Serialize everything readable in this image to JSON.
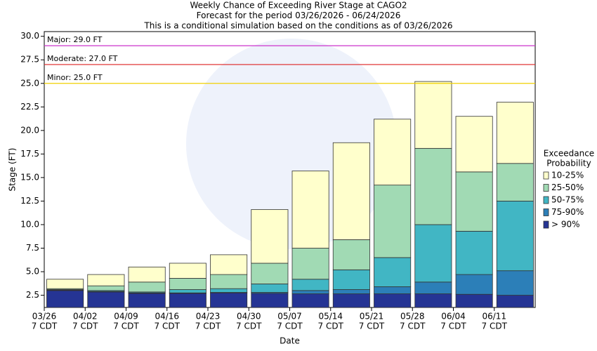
{
  "chart_data": {
    "type": "stacked_bar",
    "title": [
      "Weekly Chance of Exceeding River Stage at CAGO2",
      "Forecast for the period 03/26/2026 - 06/24/2026",
      "This is a conditional simulation based on the conditions as of 03/26/2026"
    ],
    "x_label": "Date",
    "y_label": "Stage (FT)",
    "categories": [
      [
        "03/26",
        "7 CDT"
      ],
      [
        "04/02",
        "7 CDT"
      ],
      [
        "04/09",
        "7 CDT"
      ],
      [
        "04/16",
        "7 CDT"
      ],
      [
        "04/23",
        "7 CDT"
      ],
      [
        "04/30",
        "7 CDT"
      ],
      [
        "05/07",
        "7 CDT"
      ],
      [
        "05/14",
        "7 CDT"
      ],
      [
        "05/21",
        "7 CDT"
      ],
      [
        "05/28",
        "7 CDT"
      ],
      [
        "06/04",
        "7 CDT"
      ],
      [
        "06/11",
        "7 CDT"
      ]
    ],
    "series": [
      {
        "name": "> 90%",
        "color": "#253494",
        "values": [
          3.0,
          2.85,
          2.7,
          2.7,
          2.75,
          2.7,
          2.65,
          2.65,
          2.65,
          2.65,
          2.6,
          2.5
        ]
      },
      {
        "name": "75-90%",
        "color": "#2c7fb8",
        "values": [
          0.05,
          0.05,
          0.05,
          0.05,
          0.05,
          0.1,
          0.35,
          0.45,
          0.75,
          1.25,
          2.1,
          2.6
        ]
      },
      {
        "name": "50-75%",
        "color": "#41b6c4",
        "values": [
          0.05,
          0.1,
          0.1,
          0.35,
          0.4,
          0.9,
          1.2,
          2.1,
          3.1,
          6.1,
          4.6,
          7.4
        ]
      },
      {
        "name": "25-50%",
        "color": "#a1dab4",
        "values": [
          0.1,
          0.5,
          1.05,
          1.2,
          1.5,
          2.2,
          3.3,
          3.2,
          7.7,
          8.1,
          6.3,
          4.0
        ]
      },
      {
        "name": "10-25%",
        "color": "#ffffcc",
        "values": [
          1.0,
          1.2,
          1.6,
          1.6,
          2.1,
          5.7,
          8.2,
          10.3,
          7.0,
          7.1,
          5.9,
          6.5
        ]
      }
    ],
    "legend_title": [
      "Exceedance",
      "Probability"
    ],
    "legend": "right",
    "ylim": [
      1.2,
      30.5
    ],
    "yticks": [
      2.5,
      {
        "value": 5,
        "label": "5.0"
      },
      7.5,
      {
        "value": 10,
        "label": "10.0"
      },
      12.5,
      {
        "value": 15,
        "label": "15.0"
      },
      17.5,
      {
        "value": 20,
        "label": "20.0"
      },
      22.5,
      {
        "value": 25,
        "label": "25.0"
      },
      27.5,
      {
        "value": 30,
        "label": "30.0"
      }
    ],
    "thresholds": [
      {
        "label": "Major: 29.0 FT",
        "value": 29,
        "color": "#cc33cc"
      },
      {
        "label": "Moderate: 27.0 FT",
        "value": 27,
        "color": "#dd2222"
      },
      {
        "label": "Minor: 25.0 FT",
        "value": 25,
        "color": "#f0d000"
      }
    ]
  }
}
